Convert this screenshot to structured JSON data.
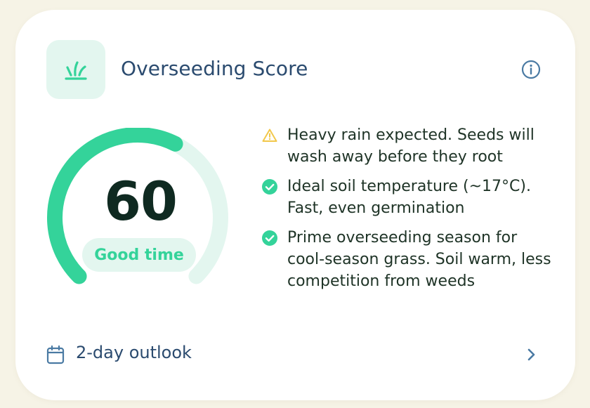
{
  "header": {
    "icon": "grass-icon",
    "title": "Overseeding Score",
    "info_icon": "info-icon"
  },
  "score": {
    "value": "60",
    "fraction": 0.6,
    "label": "Good time"
  },
  "colors": {
    "accent": "#34d39a",
    "accent_light": "#e3f6ef",
    "warning": "#f2c84b",
    "title": "#2b4b6f",
    "score_text": "#0f2a21"
  },
  "factors": [
    {
      "status": "warning",
      "icon": "warning-icon",
      "text": "Heavy rain expected. Seeds will wash away before they root"
    },
    {
      "status": "good",
      "icon": "check-circle-icon",
      "text": "Ideal soil temperature (~17°C). Fast, even germination"
    },
    {
      "status": "good",
      "icon": "check-circle-icon",
      "text": "Prime overseeding season for cool-season grass. Soil warm, less competition from weeds"
    }
  ],
  "footer": {
    "icon": "calendar-icon",
    "label": "2-day outlook",
    "chevron": "chevron-right-icon"
  }
}
